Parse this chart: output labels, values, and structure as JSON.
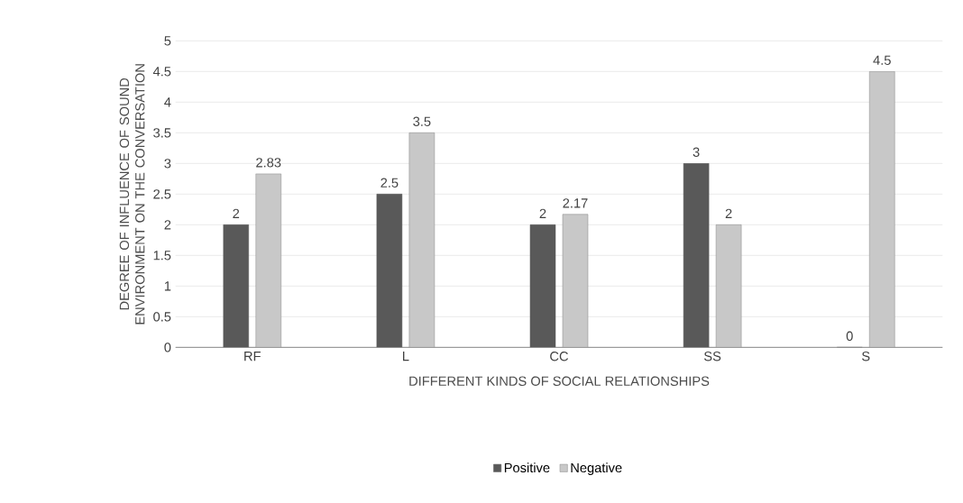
{
  "chart_data": {
    "type": "bar",
    "xlabel": "DIFFERENT KINDS OF SOCIAL RELATIONSHIPS",
    "ylabel": "DEGREE OF INFLUENCE OF SOUND ENVIRONMENT ON THE CONVERSATION",
    "categories": [
      "RF",
      "L",
      "CC",
      "SS",
      "S"
    ],
    "series": [
      {
        "name": "Positive",
        "color": "#595959",
        "values": [
          2,
          2.5,
          2,
          3,
          0
        ]
      },
      {
        "name": "Negative",
        "color": "#c8c8c8",
        "values": [
          2.83,
          3.5,
          2.17,
          2,
          4.5
        ]
      }
    ],
    "ylim": [
      0,
      5
    ],
    "yticks": [
      0,
      0.5,
      1,
      1.5,
      2,
      2.5,
      3,
      3.5,
      4,
      4.5,
      5
    ],
    "grid": "y",
    "legend": "bottom",
    "data_labels": true
  }
}
